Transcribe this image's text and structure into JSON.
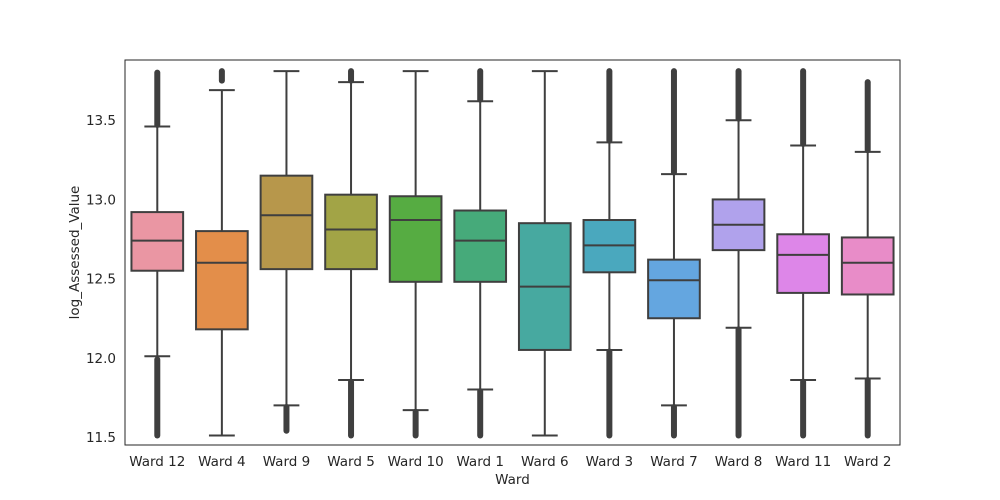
{
  "chart_data": {
    "type": "box",
    "title": "",
    "xlabel": "Ward",
    "ylabel": "log_Assessed_Value",
    "ylim": [
      11.45,
      13.88
    ],
    "yticks": [
      11.5,
      12.0,
      12.5,
      13.0,
      13.5
    ],
    "ytick_labels": [
      "11.5",
      "12.0",
      "12.5",
      "13.0",
      "13.5"
    ],
    "grid": false,
    "legend": "none",
    "categories": [
      "Ward 12",
      "Ward 4",
      "Ward 9",
      "Ward 5",
      "Ward 10",
      "Ward 1",
      "Ward 6",
      "Ward 3",
      "Ward 7",
      "Ward 8",
      "Ward 11",
      "Ward 2"
    ],
    "boxes": [
      {
        "q1": 12.55,
        "median": 12.74,
        "q3": 12.92,
        "whisker_low": 12.01,
        "whisker_high": 13.46,
        "outliers_low": [
          11.51,
          11.99
        ],
        "outliers_high": [
          13.47,
          13.8
        ],
        "color": "#ea96a3"
      },
      {
        "q1": 12.18,
        "median": 12.6,
        "q3": 12.8,
        "whisker_low": 11.51,
        "whisker_high": 13.69,
        "outliers_low": [],
        "outliers_high": [
          13.75,
          13.81
        ],
        "color": "#e38e4a"
      },
      {
        "q1": 12.56,
        "median": 12.9,
        "q3": 13.15,
        "whisker_low": 11.7,
        "whisker_high": 13.81,
        "outliers_low": [
          11.54,
          11.69
        ],
        "outliers_high": [],
        "color": "#b7974b"
      },
      {
        "q1": 12.56,
        "median": 12.81,
        "q3": 13.03,
        "whisker_low": 11.86,
        "whisker_high": 13.74,
        "outliers_low": [
          11.51,
          11.85
        ],
        "outliers_high": [
          13.75,
          13.81
        ],
        "color": "#a2a446"
      },
      {
        "q1": 12.48,
        "median": 12.87,
        "q3": 13.02,
        "whisker_low": 11.67,
        "whisker_high": 13.81,
        "outliers_low": [
          11.51,
          11.66
        ],
        "outliers_high": [],
        "color": "#56ac42"
      },
      {
        "q1": 12.48,
        "median": 12.74,
        "q3": 12.93,
        "whisker_low": 11.8,
        "whisker_high": 13.62,
        "outliers_low": [
          11.51,
          11.79
        ],
        "outliers_high": [
          13.63,
          13.81
        ],
        "color": "#46aa7a"
      },
      {
        "q1": 12.05,
        "median": 12.45,
        "q3": 12.85,
        "whisker_low": 11.51,
        "whisker_high": 13.81,
        "outliers_low": [],
        "outliers_high": [],
        "color": "#47a9a0"
      },
      {
        "q1": 12.54,
        "median": 12.71,
        "q3": 12.87,
        "whisker_low": 12.05,
        "whisker_high": 13.36,
        "outliers_low": [
          11.51,
          12.04
        ],
        "outliers_high": [
          13.37,
          13.81
        ],
        "color": "#4aa8be"
      },
      {
        "q1": 12.25,
        "median": 12.49,
        "q3": 12.62,
        "whisker_low": 11.7,
        "whisker_high": 13.16,
        "outliers_low": [
          11.51,
          11.69
        ],
        "outliers_high": [
          13.17,
          13.81
        ],
        "color": "#64a6e0"
      },
      {
        "q1": 12.68,
        "median": 12.84,
        "q3": 13.0,
        "whisker_low": 12.19,
        "whisker_high": 13.5,
        "outliers_low": [
          11.51,
          12.18
        ],
        "outliers_high": [
          13.51,
          13.81
        ],
        "color": "#b0a2ec"
      },
      {
        "q1": 12.41,
        "median": 12.65,
        "q3": 12.78,
        "whisker_low": 11.86,
        "whisker_high": 13.34,
        "outliers_low": [
          11.51,
          11.85
        ],
        "outliers_high": [
          13.35,
          13.81
        ],
        "color": "#dd86e8"
      },
      {
        "q1": 12.4,
        "median": 12.6,
        "q3": 12.76,
        "whisker_low": 11.87,
        "whisker_high": 13.3,
        "outliers_low": [
          11.51,
          11.86
        ],
        "outliers_high": [
          13.31,
          13.74
        ],
        "color": "#e88cc8"
      }
    ]
  }
}
